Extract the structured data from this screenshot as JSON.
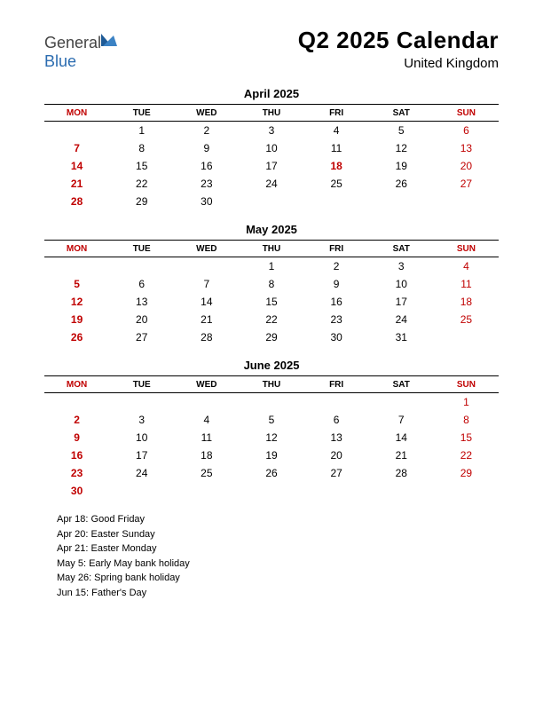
{
  "logo": {
    "word1": "General",
    "word2": "Blue"
  },
  "header": {
    "title": "Q2 2025 Calendar",
    "subtitle": "United Kingdom"
  },
  "style": {
    "page_bg": "#ffffff",
    "text_color": "#000000",
    "red": "#c00000",
    "logo_gray": "#444444",
    "logo_blue": "#2b6cb0",
    "border_color": "#000000",
    "title_fontsize": 26,
    "subtitle_fontsize": 15,
    "month_title_fontsize": 13,
    "dayhead_fontsize": 10,
    "cell_fontsize": 12,
    "holiday_fontsize": 11
  },
  "day_headers": [
    "MON",
    "TUE",
    "WED",
    "THU",
    "FRI",
    "SAT",
    "SUN"
  ],
  "weekend_header_cols": [
    0,
    6
  ],
  "months": [
    {
      "title": "April 2025",
      "weeks": [
        [
          "",
          "1",
          "2",
          "3",
          "4",
          "5",
          "6"
        ],
        [
          "7",
          "8",
          "9",
          "10",
          "11",
          "12",
          "13"
        ],
        [
          "14",
          "15",
          "16",
          "17",
          "18",
          "19",
          "20"
        ],
        [
          "21",
          "22",
          "23",
          "24",
          "25",
          "26",
          "27"
        ],
        [
          "28",
          "29",
          "30",
          "",
          "",
          "",
          ""
        ]
      ],
      "red_cells": [
        [
          0,
          6
        ],
        [
          1,
          0
        ],
        [
          1,
          6
        ],
        [
          2,
          0
        ],
        [
          2,
          4
        ],
        [
          2,
          6
        ],
        [
          3,
          0
        ],
        [
          3,
          6
        ],
        [
          4,
          0
        ]
      ]
    },
    {
      "title": "May 2025",
      "weeks": [
        [
          "",
          "",
          "",
          "1",
          "2",
          "3",
          "4"
        ],
        [
          "5",
          "6",
          "7",
          "8",
          "9",
          "10",
          "11"
        ],
        [
          "12",
          "13",
          "14",
          "15",
          "16",
          "17",
          "18"
        ],
        [
          "19",
          "20",
          "21",
          "22",
          "23",
          "24",
          "25"
        ],
        [
          "26",
          "27",
          "28",
          "29",
          "30",
          "31",
          ""
        ]
      ],
      "red_cells": [
        [
          0,
          6
        ],
        [
          1,
          0
        ],
        [
          1,
          6
        ],
        [
          2,
          0
        ],
        [
          2,
          6
        ],
        [
          3,
          0
        ],
        [
          3,
          6
        ],
        [
          4,
          0
        ]
      ]
    },
    {
      "title": "June 2025",
      "weeks": [
        [
          "",
          "",
          "",
          "",
          "",
          "",
          "1"
        ],
        [
          "2",
          "3",
          "4",
          "5",
          "6",
          "7",
          "8"
        ],
        [
          "9",
          "10",
          "11",
          "12",
          "13",
          "14",
          "15"
        ],
        [
          "16",
          "17",
          "18",
          "19",
          "20",
          "21",
          "22"
        ],
        [
          "23",
          "24",
          "25",
          "26",
          "27",
          "28",
          "29"
        ],
        [
          "30",
          "",
          "",
          "",
          "",
          "",
          ""
        ]
      ],
      "red_cells": [
        [
          0,
          6
        ],
        [
          1,
          0
        ],
        [
          1,
          6
        ],
        [
          2,
          0
        ],
        [
          2,
          6
        ],
        [
          3,
          0
        ],
        [
          3,
          6
        ],
        [
          4,
          0
        ],
        [
          4,
          6
        ],
        [
          5,
          0
        ]
      ]
    }
  ],
  "holidays": [
    "Apr 18: Good Friday",
    "Apr 20: Easter Sunday",
    "Apr 21: Easter Monday",
    "May 5: Early May bank holiday",
    "May 26: Spring bank holiday",
    "Jun 15: Father's Day"
  ]
}
